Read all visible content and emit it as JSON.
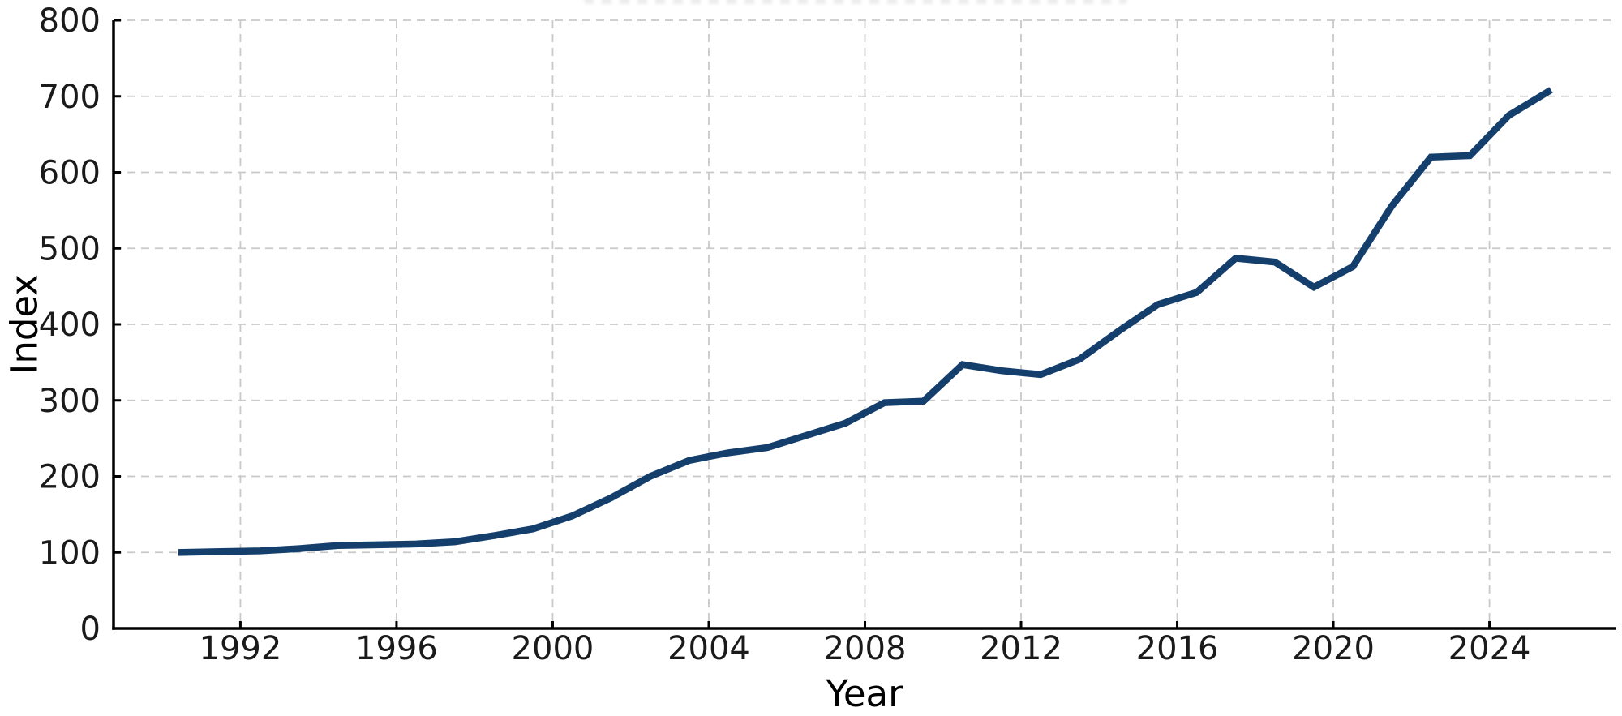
{
  "chart_data": {
    "type": "line",
    "title": "",
    "title_clipped_at_top": true,
    "xlabel": "Year",
    "ylabel": "Index",
    "years": [
      1990,
      1991,
      1992,
      1993,
      1994,
      1995,
      1996,
      1997,
      1998,
      1999,
      2000,
      2001,
      2002,
      2003,
      2004,
      2005,
      2006,
      2007,
      2008,
      2009,
      2010,
      2011,
      2012,
      2013,
      2014,
      2015,
      2016,
      2017,
      2018,
      2019,
      2020,
      2021,
      2022,
      2023,
      2024,
      2025
    ],
    "x_point_offset": 0.5,
    "series": [
      {
        "name": "Index",
        "color": "#143e6c",
        "line_width": 8.5,
        "values": [
          100,
          101,
          102,
          105,
          109,
          110,
          111,
          114,
          122,
          131,
          148,
          172,
          200,
          221,
          231,
          238,
          254,
          270,
          297,
          299,
          347,
          339,
          334,
          354,
          391,
          426,
          442,
          487,
          482,
          449,
          476,
          556,
          620,
          622,
          675,
          706
        ]
      }
    ],
    "xticks": [
      1992,
      1996,
      2000,
      2004,
      2008,
      2012,
      2016,
      2020,
      2024
    ],
    "yticks": [
      0,
      100,
      200,
      300,
      400,
      500,
      600,
      700,
      800
    ],
    "xlim": [
      1988.75,
      2027.25
    ],
    "ylim": [
      0,
      800
    ],
    "grid": true,
    "legend": "none"
  },
  "styles": {
    "background": "#ffffff",
    "grid_color": "#c9c9c9",
    "grid_dash": "10 7",
    "grid_width": 1.8,
    "axis_color": "#000000",
    "spine_width": 3.5,
    "tick_length": 9,
    "tick_width": 3,
    "tick_label_color": "#1a1a1a",
    "tick_font_px": 40,
    "axis_label_font_px": 45
  }
}
